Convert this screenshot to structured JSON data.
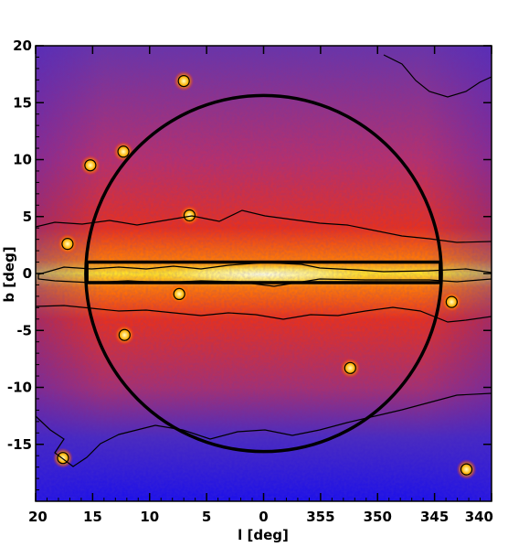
{
  "chart_data": {
    "type": "heatmap",
    "xlabel": "l [deg]",
    "ylabel": "b [deg]",
    "xlim": [
      20,
      340
    ],
    "ylim": [
      -20,
      20
    ],
    "x_ticks": [
      {
        "label": "20",
        "offset": 20
      },
      {
        "label": "15",
        "offset": 15
      },
      {
        "label": "10",
        "offset": 10
      },
      {
        "label": "5",
        "offset": 5
      },
      {
        "label": "0",
        "offset": 0
      },
      {
        "label": "355",
        "offset": -5
      },
      {
        "label": "350",
        "offset": -10
      },
      {
        "label": "345",
        "offset": -15
      },
      {
        "label": "340",
        "offset": -20
      }
    ],
    "y_ticks": [
      {
        "label": "20",
        "value": 20
      },
      {
        "label": "15",
        "value": 15
      },
      {
        "label": "10",
        "value": 10
      },
      {
        "label": "5",
        "value": 5
      },
      {
        "label": "0",
        "value": 0
      },
      {
        "label": "-5",
        "value": -5
      },
      {
        "label": "-10",
        "value": -10
      },
      {
        "label": "-15",
        "value": -15
      }
    ],
    "colormap": [
      "#1a10e8",
      "#5a2ab0",
      "#c02040",
      "#ff3a10",
      "#ff9a00",
      "#ffe020",
      "#ffffb0"
    ],
    "overlay_regions": [
      {
        "shape": "circle",
        "center_l": 0,
        "center_b": 0,
        "radius_deg": 15.6
      },
      {
        "shape": "rectangle",
        "l_min": -15.5,
        "l_max": 15.5,
        "b_min": -0.8,
        "b_max": 1.0
      }
    ],
    "point_sources": [
      {
        "l": 7,
        "b": 16.9
      },
      {
        "l": 15.2,
        "b": 9.5
      },
      {
        "l": 12.3,
        "b": 10.7
      },
      {
        "l": 6.5,
        "b": 5.1
      },
      {
        "l": 17.2,
        "b": 2.6
      },
      {
        "l": 7.4,
        "b": -1.8
      },
      {
        "l": -16.5,
        "b": -2.5
      },
      {
        "l": 12.2,
        "b": -5.4
      },
      {
        "l": -7.6,
        "b": -8.3
      },
      {
        "l": 17.6,
        "b": -16.2
      },
      {
        "l": -17.8,
        "b": -17.2
      }
    ]
  }
}
